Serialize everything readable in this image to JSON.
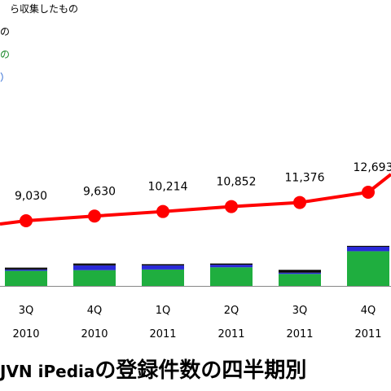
{
  "legend_lines": [
    {
      "text": "ら収集したもの",
      "color": "#000000"
    },
    {
      "text": "の",
      "color": "#000000"
    },
    {
      "text": "の",
      "color": "#1a8a2a"
    },
    {
      "text": "）",
      "color": "#1f5fd0"
    }
  ],
  "caption": {
    "prefix": "JVN iPedia",
    "suffix": "の登録件数の四半期別"
  },
  "colors": {
    "line": "#ff0000",
    "bar_green": "#1fae3f",
    "bar_blue": "#2a2ad8",
    "bar_black": "#0a0a0a",
    "axis": "#888888"
  },
  "chart_data": {
    "type": "bar+line",
    "categories": [
      [
        "3Q",
        "2010"
      ],
      [
        "4Q",
        "2010"
      ],
      [
        "1Q",
        "2011"
      ],
      [
        "2Q",
        "2011"
      ],
      [
        "3Q",
        "2011"
      ],
      [
        "4Q",
        "2011"
      ]
    ],
    "line_series": {
      "values": [
        9030,
        9630,
        10214,
        10852,
        11376,
        12693
      ],
      "labels": [
        "9,030",
        "9,630",
        "10,214",
        "10,852",
        "11,376",
        "12,693"
      ]
    },
    "bar_series": [
      {
        "color_key": "bar_green",
        "values": [
          480,
          500,
          520,
          590,
          380,
          1100
        ]
      },
      {
        "color_key": "bar_blue",
        "values": [
          40,
          150,
          130,
          80,
          40,
          140
        ]
      },
      {
        "color_key": "bar_black",
        "values": [
          60,
          60,
          40,
          40,
          90,
          30
        ]
      }
    ],
    "bar_ylim": [
      0,
      2000
    ]
  }
}
